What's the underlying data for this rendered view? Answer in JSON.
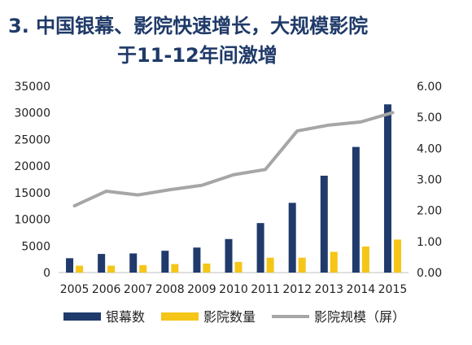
{
  "title_line1": "3. 中国银幕、影院快速增长，大规模影院",
  "title_line2": "于11-12年间激增",
  "colors": {
    "title": "#1f3a68",
    "screens": "#1f3a6b",
    "cinemas": "#f5c518",
    "scale": "#a6a6a6"
  },
  "chart_data": {
    "type": "bar",
    "categories": [
      "2005",
      "2006",
      "2007",
      "2008",
      "2009",
      "2010",
      "2011",
      "2012",
      "2013",
      "2014",
      "2015"
    ],
    "series": [
      {
        "name": "银幕数",
        "type": "bar",
        "axis": "left",
        "values": [
          2700,
          3500,
          3600,
          4100,
          4700,
          6300,
          9300,
          13100,
          18200,
          23600,
          31600
        ]
      },
      {
        "name": "影院数量",
        "type": "bar",
        "axis": "left",
        "values": [
          1300,
          1300,
          1400,
          1600,
          1700,
          2000,
          2800,
          2800,
          3900,
          4900,
          6200
        ]
      },
      {
        "name": "影院规模（屏）",
        "type": "line",
        "axis": "right",
        "values": [
          2.15,
          2.62,
          2.5,
          2.67,
          2.81,
          3.15,
          3.32,
          4.56,
          4.75,
          4.85,
          5.15
        ]
      }
    ],
    "ylim_left": [
      0,
      35000
    ],
    "ylim_right": [
      0,
      6
    ],
    "left_ticks": [
      "0",
      "5000",
      "10000",
      "15000",
      "20000",
      "25000",
      "30000",
      "35000"
    ],
    "right_ticks": [
      "0.00",
      "1.00",
      "2.00",
      "3.00",
      "4.00",
      "5.00",
      "6.00"
    ],
    "legend_position": "bottom",
    "grid": false
  }
}
